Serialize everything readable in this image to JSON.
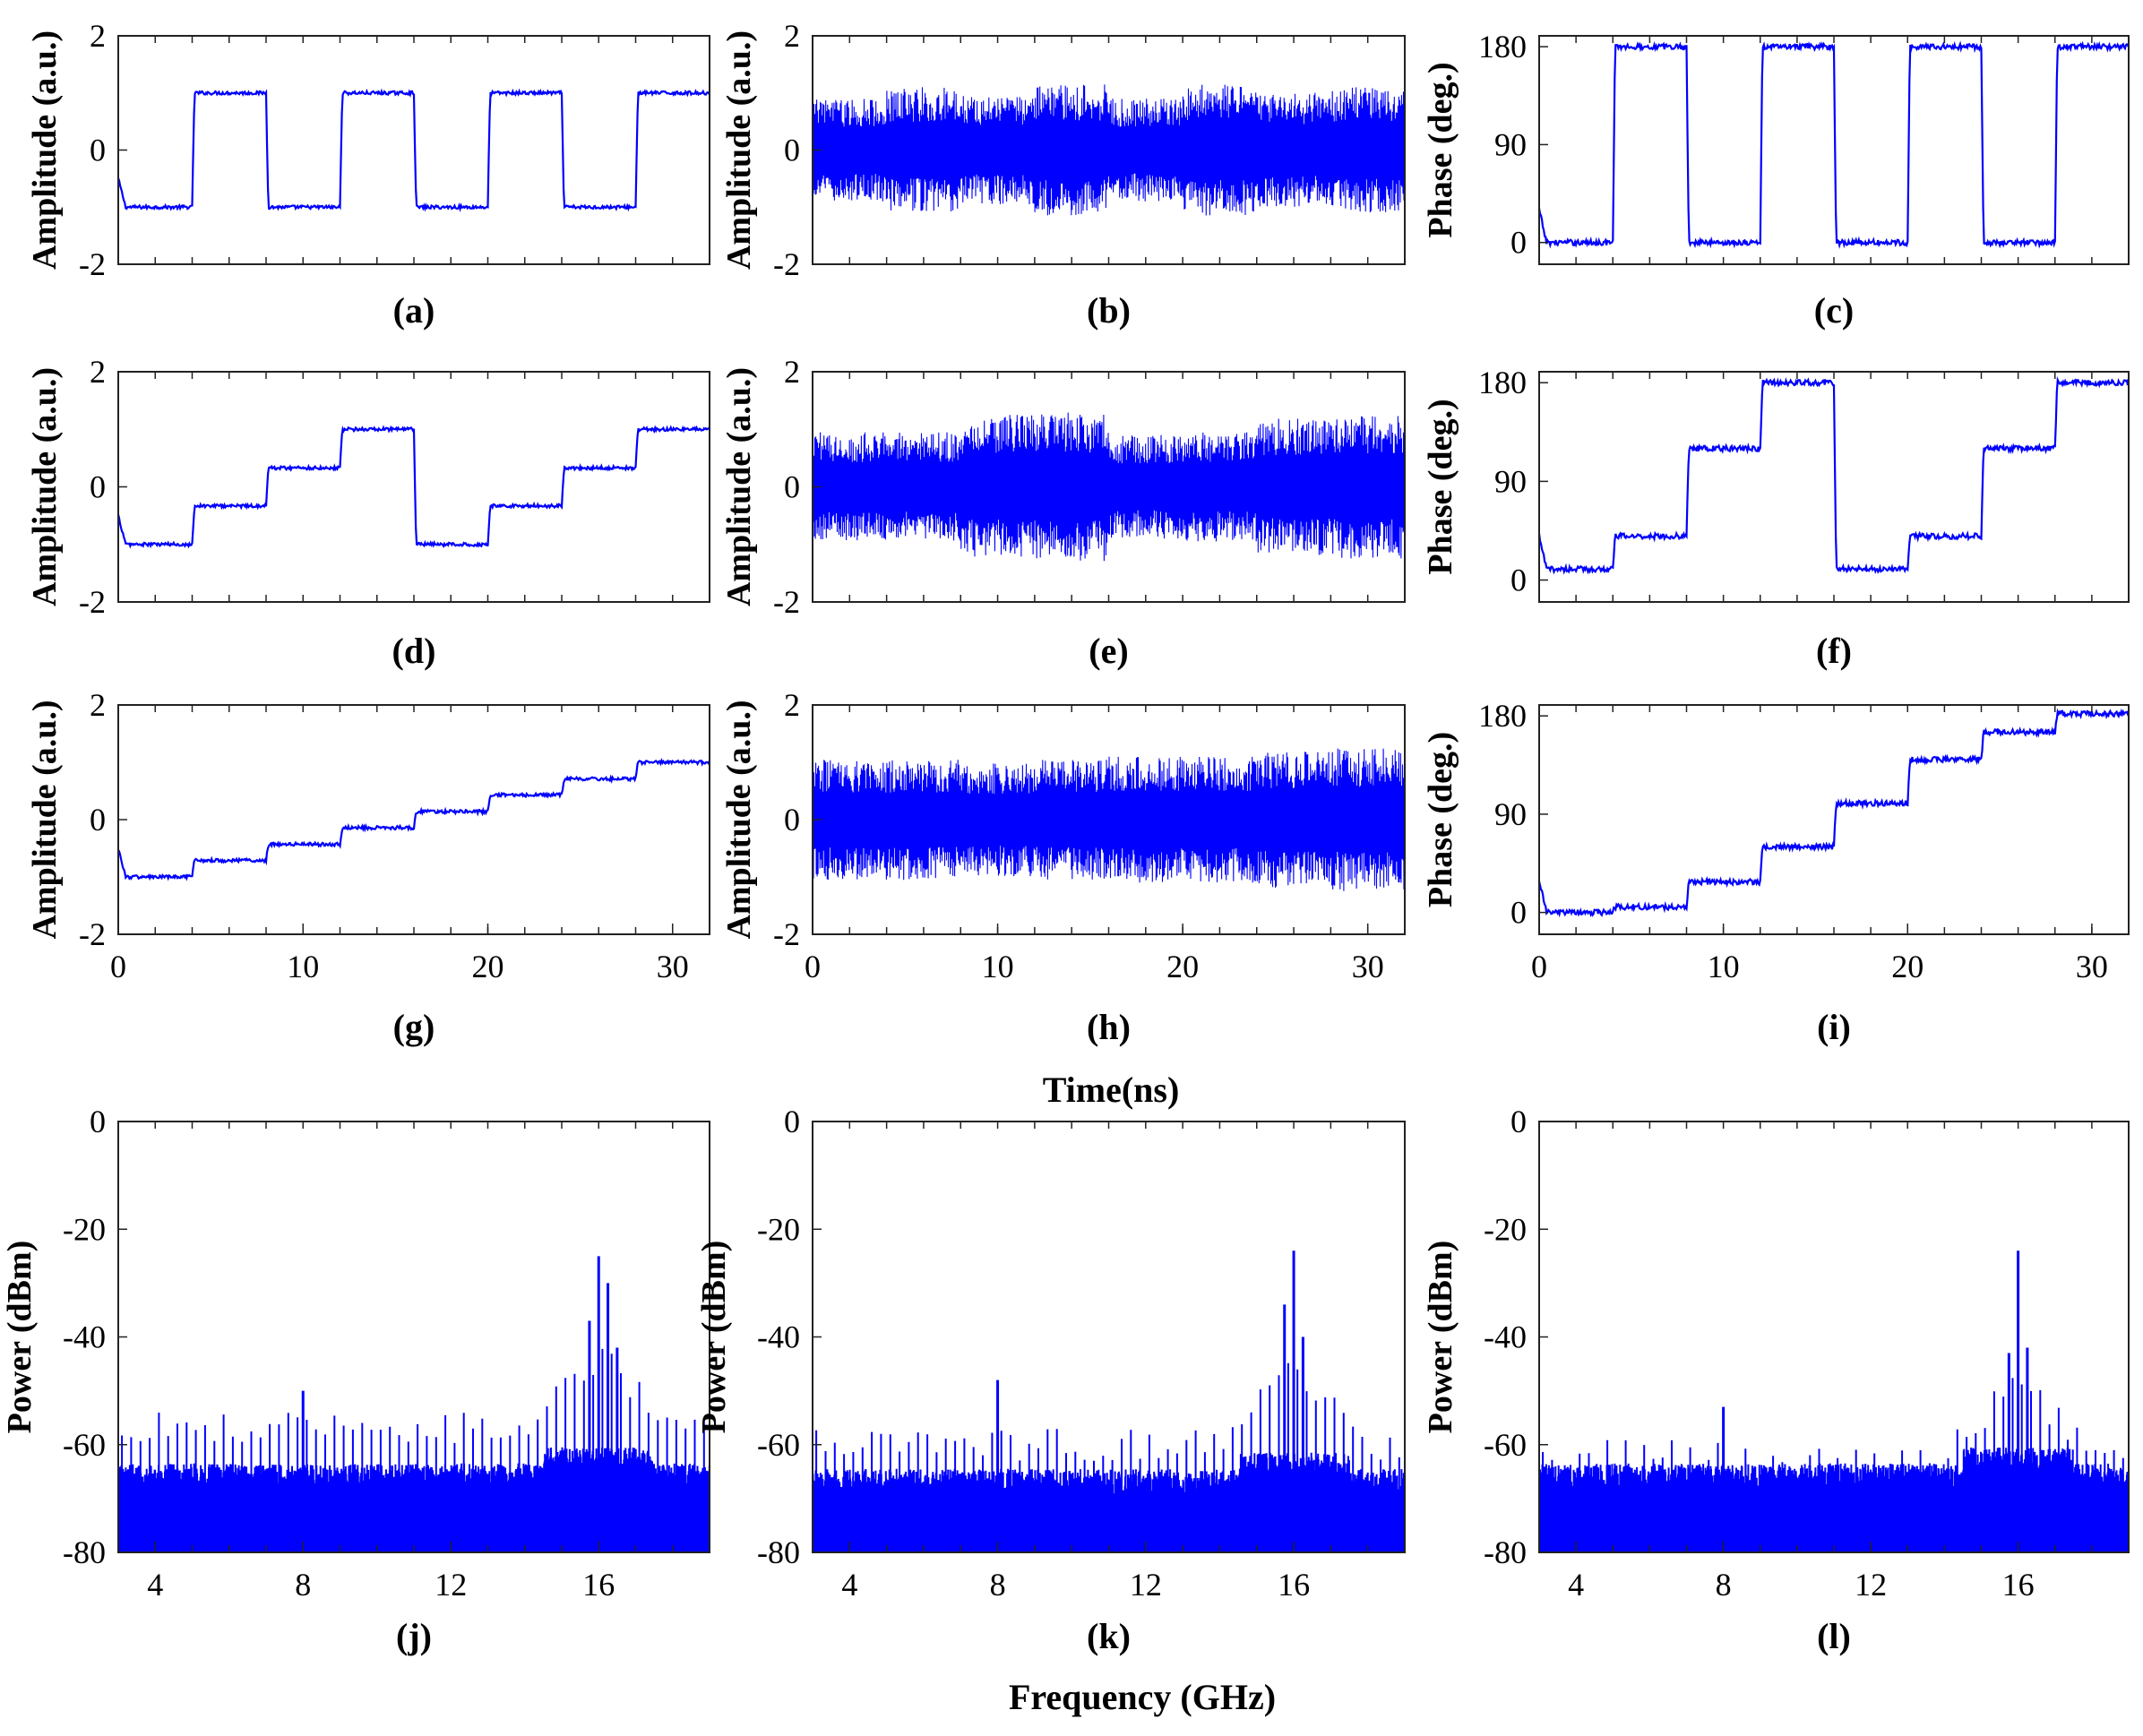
{
  "figure": {
    "time_xlabel": "Time(ns)",
    "freq_xlabel": "Frequency (GHz)",
    "line_color": "#0000ff"
  },
  "chart_data": [
    {
      "id": "a",
      "type": "line",
      "caption": "(a)",
      "ylabel": "Amplitude (a.u.)",
      "xlim": [
        0,
        32
      ],
      "ylim": [
        -2,
        2
      ],
      "yticks": [
        "-2",
        "0",
        "2"
      ],
      "xticks": [],
      "signal": "levels",
      "levels": [
        -1,
        1,
        -1,
        1,
        -1,
        1,
        -1,
        1
      ],
      "level_period_ns": 4
    },
    {
      "id": "b",
      "type": "line",
      "caption": "(b)",
      "ylabel": "Amplitude (a.u.)",
      "xlim": [
        0,
        32
      ],
      "ylim": [
        -2,
        2
      ],
      "yticks": [
        "-2",
        "0",
        "2"
      ],
      "xticks": [],
      "signal": "rf_noise",
      "envelope": [
        0.9,
        1.1,
        0.95,
        1.15,
        0.9,
        1.15,
        1.0,
        1.1
      ],
      "level_period_ns": 4
    },
    {
      "id": "c",
      "type": "line",
      "caption": "(c)",
      "ylabel": "Phase (deg.)",
      "xlim": [
        0,
        32
      ],
      "ylim": [
        -20,
        190
      ],
      "yticks": [
        "0",
        "90",
        "180"
      ],
      "ytick_values": [
        0,
        90,
        180
      ],
      "xticks": [],
      "signal": "levels",
      "levels": [
        0,
        180,
        0,
        180,
        0,
        180,
        0,
        180
      ],
      "level_period_ns": 4
    },
    {
      "id": "d",
      "type": "line",
      "caption": "(d)",
      "ylabel": "Amplitude (a.u.)",
      "xlim": [
        0,
        32
      ],
      "ylim": [
        -2,
        2
      ],
      "yticks": [
        "-2",
        "0",
        "2"
      ],
      "xticks": [],
      "signal": "levels",
      "levels": [
        -1,
        -0.33,
        0.33,
        1,
        -1,
        -0.33,
        0.33,
        1
      ],
      "level_period_ns": 4
    },
    {
      "id": "e",
      "type": "line",
      "caption": "(e)",
      "ylabel": "Amplitude (a.u.)",
      "xlim": [
        0,
        32
      ],
      "ylim": [
        -2,
        2
      ],
      "yticks": [
        "-2",
        "0",
        "2"
      ],
      "xticks": [],
      "signal": "rf_noise",
      "envelope": [
        0.95,
        0.95,
        1.25,
        1.3,
        0.9,
        0.95,
        1.2,
        1.25
      ],
      "level_period_ns": 4
    },
    {
      "id": "f",
      "type": "line",
      "caption": "(f)",
      "ylabel": "Phase (deg.)",
      "xlim": [
        0,
        32
      ],
      "ylim": [
        -20,
        190
      ],
      "yticks": [
        "0",
        "90",
        "180"
      ],
      "ytick_values": [
        0,
        90,
        180
      ],
      "xticks": [],
      "signal": "levels",
      "levels": [
        10,
        40,
        120,
        180,
        10,
        40,
        120,
        180
      ],
      "level_period_ns": 4
    },
    {
      "id": "g",
      "type": "line",
      "caption": "(g)",
      "ylabel": "Amplitude (a.u.)",
      "xlim": [
        0,
        32
      ],
      "ylim": [
        -2,
        2
      ],
      "yticks": [
        "-2",
        "0",
        "2"
      ],
      "xticks": [
        "0",
        "10",
        "20",
        "30"
      ],
      "xtick_values": [
        0,
        10,
        20,
        30
      ],
      "signal": "levels",
      "levels": [
        -1,
        -0.71,
        -0.43,
        -0.14,
        0.14,
        0.43,
        0.71,
        1
      ],
      "level_period_ns": 4
    },
    {
      "id": "h",
      "type": "line",
      "caption": "(h)",
      "ylabel": "Amplitude (a.u.)",
      "xlim": [
        0,
        32
      ],
      "ylim": [
        -2,
        2
      ],
      "yticks": [
        "-2",
        "0",
        "2"
      ],
      "xticks": [
        "0",
        "10",
        "20",
        "30"
      ],
      "xtick_values": [
        0,
        10,
        20,
        30
      ],
      "signal": "rf_noise",
      "envelope": [
        1.05,
        1.05,
        1.0,
        1.05,
        1.1,
        1.1,
        1.2,
        1.25
      ],
      "level_period_ns": 4
    },
    {
      "id": "i",
      "type": "line",
      "caption": "(i)",
      "ylabel": "Phase (deg.)",
      "xlim": [
        0,
        32
      ],
      "ylim": [
        -20,
        190
      ],
      "yticks": [
        "0",
        "90",
        "180"
      ],
      "ytick_values": [
        0,
        90,
        180
      ],
      "xticks": [
        "0",
        "10",
        "20",
        "30"
      ],
      "xtick_values": [
        0,
        10,
        20,
        30
      ],
      "signal": "levels",
      "levels": [
        0,
        5,
        28,
        60,
        100,
        140,
        165,
        182
      ],
      "level_period_ns": 4
    },
    {
      "id": "j",
      "type": "spectrum",
      "caption": "(j)",
      "ylabel": "Power (dBm)",
      "xlim": [
        3,
        19
      ],
      "ylim": [
        -80,
        0
      ],
      "yticks": [
        "0",
        "-20",
        "-40",
        "-60",
        "-80"
      ],
      "ytick_values": [
        0,
        -20,
        -40,
        -60,
        -80
      ],
      "xticks": [
        "4",
        "8",
        "12",
        "16"
      ],
      "xtick_values": [
        4,
        8,
        12,
        16
      ],
      "noise_floor_dBm": -66,
      "comb_spacing_GHz": 0.25,
      "comb_level_dBm": -57,
      "peaks": [
        {
          "f": 16,
          "p": -25
        },
        {
          "f": 15.75,
          "p": -37
        },
        {
          "f": 16.25,
          "p": -30
        },
        {
          "f": 16.5,
          "p": -42
        },
        {
          "f": 8,
          "p": -50
        }
      ]
    },
    {
      "id": "k",
      "type": "spectrum",
      "caption": "(k)",
      "ylabel": "Power (dBm)",
      "xlim": [
        3,
        19
      ],
      "ylim": [
        -80,
        0
      ],
      "yticks": [
        "0",
        "-20",
        "-40",
        "-60",
        "-80"
      ],
      "ytick_values": [
        0,
        -20,
        -40,
        -60,
        -80
      ],
      "xticks": [
        "4",
        "8",
        "12",
        "16"
      ],
      "xtick_values": [
        4,
        8,
        12,
        16
      ],
      "noise_floor_dBm": -67,
      "comb_spacing_GHz": 0.25,
      "comb_level_dBm": -60,
      "peaks": [
        {
          "f": 16,
          "p": -24
        },
        {
          "f": 15.75,
          "p": -34
        },
        {
          "f": 16.25,
          "p": -40
        },
        {
          "f": 8,
          "p": -48
        }
      ]
    },
    {
      "id": "l",
      "type": "spectrum",
      "caption": "(l)",
      "ylabel": "Power (dBm)",
      "xlim": [
        3,
        19
      ],
      "ylim": [
        -80,
        0
      ],
      "yticks": [
        "0",
        "-20",
        "-40",
        "-60",
        "-80"
      ],
      "ytick_values": [
        0,
        -20,
        -40,
        -60,
        -80
      ],
      "xticks": [
        "4",
        "8",
        "12",
        "16"
      ],
      "xtick_values": [
        4,
        8,
        12,
        16
      ],
      "noise_floor_dBm": -66,
      "comb_spacing_GHz": 0.25,
      "comb_level_dBm": -62,
      "peaks": [
        {
          "f": 16,
          "p": -24
        },
        {
          "f": 15.75,
          "p": -43
        },
        {
          "f": 16.25,
          "p": -42
        },
        {
          "f": 8,
          "p": -53
        }
      ]
    }
  ]
}
